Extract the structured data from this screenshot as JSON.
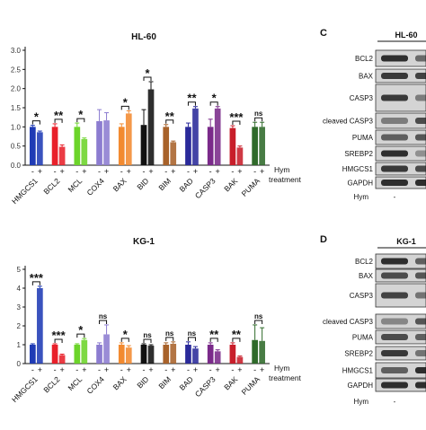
{
  "hym_label": "Hym",
  "treatment_label": "treatment",
  "colors": {
    "HMGCS1": "#1f3bb5",
    "BCL2": "#e8202a",
    "MCL": "#6cd42a",
    "COX4": "#8c7cd0",
    "BAX": "#f28a30",
    "BID": "#111111",
    "BIM": "#a8622a",
    "BAD": "#2a2a9a",
    "CASP3": "#7a2a8a",
    "BAK": "#c81e2a",
    "PUMA": "#2f6a2a"
  },
  "chart_data": [
    {
      "type": "bar",
      "title": "HL-60",
      "categories": [
        "HMGCS1",
        "BCL2",
        "MCL",
        "COX4",
        "BAX",
        "BID",
        "BIM",
        "BAD",
        "CASP3",
        "BAK",
        "PUMA"
      ],
      "ylim": [
        0,
        3.0
      ],
      "yticks": [
        "0.0",
        "0.5",
        "1.0",
        "1.5",
        "2.0",
        "2.5",
        "3.0"
      ],
      "series": [
        {
          "values": [
            1.0,
            1.0,
            1.0,
            1.15,
            1.0,
            1.05,
            1.0,
            1.0,
            1.0,
            0.97,
            1.0
          ]
        },
        {
          "values": [
            0.86,
            0.48,
            0.68,
            1.17,
            1.35,
            1.98,
            0.6,
            1.48,
            1.48,
            0.46,
            1.0
          ]
        }
      ],
      "errors": [
        [
          0.04,
          0.08,
          0.1,
          0.3,
          0.08,
          0.4,
          0.06,
          0.1,
          0.2,
          0.06,
          0.12
        ],
        [
          0.03,
          0.05,
          0.03,
          0.2,
          0.07,
          0.2,
          0.03,
          0.05,
          0.05,
          0.04,
          0.12
        ]
      ],
      "significance": [
        "*",
        "**",
        "*",
        "",
        "*",
        "*",
        "**",
        "**",
        "*",
        "***",
        "ns"
      ],
      "x_markers": [
        "-",
        "+"
      ]
    },
    {
      "type": "bar",
      "title": "KG-1",
      "categories": [
        "HMGCS1",
        "BCL2",
        "MCL",
        "COX4",
        "BAX",
        "BID",
        "BIM",
        "BAD",
        "CASP3",
        "BAK",
        "PUMA"
      ],
      "ylim": [
        0,
        5
      ],
      "yticks": [
        "0",
        "1",
        "2",
        "3",
        "4",
        "5"
      ],
      "series": [
        {
          "values": [
            1.0,
            1.0,
            1.0,
            1.0,
            1.0,
            1.0,
            1.0,
            1.0,
            1.0,
            1.0,
            1.25
          ]
        },
        {
          "values": [
            4.0,
            0.45,
            1.25,
            1.55,
            0.85,
            0.95,
            1.05,
            0.8,
            0.65,
            0.35,
            1.2
          ]
        }
      ],
      "errors": [
        [
          0.05,
          0.05,
          0.05,
          0.1,
          0.1,
          0.05,
          0.1,
          0.15,
          0.1,
          0.1,
          0.8
        ],
        [
          0.1,
          0.05,
          0.08,
          0.5,
          0.1,
          0.05,
          0.1,
          0.1,
          0.08,
          0.05,
          0.7
        ]
      ],
      "significance": [
        "***",
        "***",
        "*",
        "ns",
        "*",
        "ns",
        "ns",
        "ns",
        "**",
        "**",
        "ns"
      ],
      "x_markers": [
        "-",
        "+"
      ]
    }
  ],
  "blots": [
    {
      "panel_letter": "C",
      "title": "HL-60",
      "treatment_label": "Hym",
      "treatment_markers": [
        "-",
        ""
      ],
      "labels": [
        "BCL2",
        "BAX",
        "CASP3",
        "cleaved CASP3",
        "PUMA",
        "SREBP2",
        "HMGCS1",
        "GAPDH"
      ]
    },
    {
      "panel_letter": "D",
      "title": "KG-1",
      "treatment_label": "Hym",
      "treatment_markers": [
        "-",
        ""
      ],
      "labels": [
        "BCL2",
        "BAX",
        "CASP3",
        "cleaved CASP3",
        "PUMA",
        "SREBP2",
        "HMGCS1",
        "GAPDH"
      ]
    }
  ]
}
